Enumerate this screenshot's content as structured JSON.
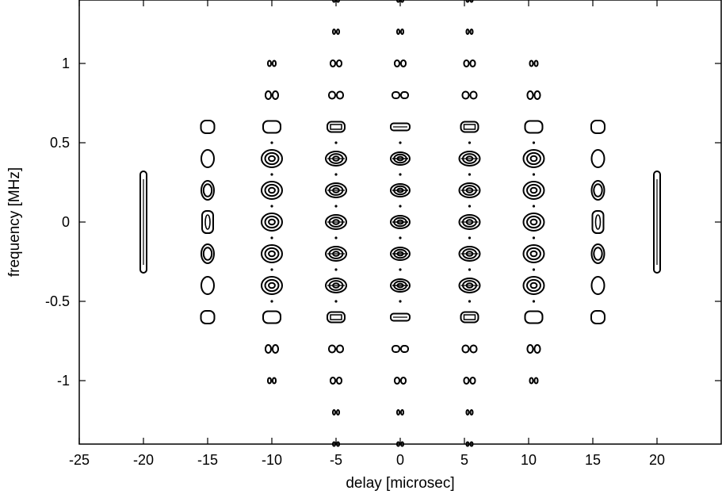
{
  "chart_data": {
    "type": "contour",
    "title": "",
    "xlabel": "delay [microsec]",
    "ylabel": "frequency [MHz]",
    "xlim": [
      -25,
      25
    ],
    "ylim": [
      -1.4,
      1.4
    ],
    "x_ticks": [
      -25,
      -20,
      -15,
      -10,
      -5,
      0,
      5,
      10,
      15,
      20
    ],
    "x_tick_labels": [
      "-25",
      "-20",
      "-15",
      "-10",
      "-5",
      "0",
      "5",
      "10",
      "15",
      "20"
    ],
    "y_ticks": [
      1,
      0.5,
      0,
      -0.5,
      -1
    ],
    "y_tick_labels": [
      "1",
      "0.5",
      "0",
      "-0.5",
      "-1"
    ],
    "grid": false,
    "legend": "none",
    "line_color": "#000000",
    "description_points": {
      "delay_columns": [
        -20,
        -15,
        -10,
        -5,
        0,
        5,
        10,
        15,
        20
      ],
      "frequency_rows": [
        -1.4,
        -1.2,
        -1.0,
        -0.8,
        -0.6,
        -0.4,
        -0.2,
        0,
        0.2,
        0.4,
        0.6,
        0.8,
        1.0,
        1.2,
        1.4
      ],
      "ridges": [
        {
          "delay": -20,
          "freq_range": [
            -0.32,
            0.32
          ]
        },
        {
          "delay": 20,
          "freq_range": [
            -0.32,
            0.32
          ]
        }
      ]
    }
  }
}
